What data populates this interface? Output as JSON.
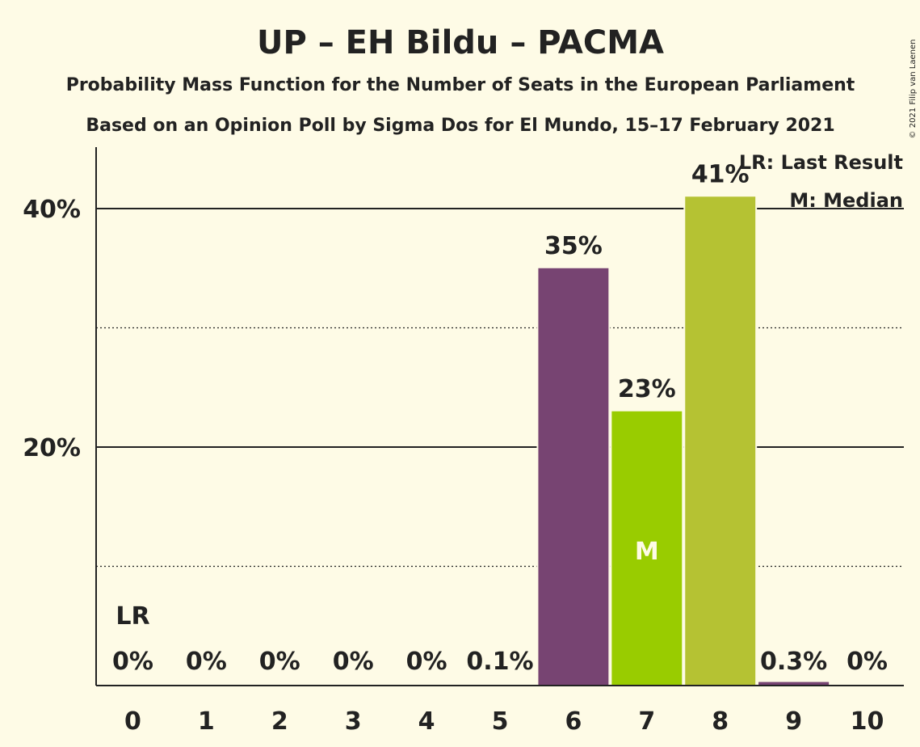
{
  "title": "UP – EH Bildu – PACMA",
  "subtitle1": "Probability Mass Function for the Number of Seats in the European Parliament",
  "subtitle2": "Based on an Opinion Poll by Sigma Dos for El Mundo, 15–17 February 2021",
  "copyright": "© 2021 Filip van Laenen",
  "legend": {
    "lr": "LR: Last Result",
    "m": "M: Median"
  },
  "chart_data": {
    "type": "bar",
    "categories": [
      "0",
      "1",
      "2",
      "3",
      "4",
      "5",
      "6",
      "7",
      "8",
      "9",
      "10"
    ],
    "values": [
      0,
      0,
      0,
      0,
      0,
      0.1,
      35,
      23,
      41,
      0.3,
      0
    ],
    "value_labels": [
      "0%",
      "0%",
      "0%",
      "0%",
      "0%",
      "0.1%",
      "35%",
      "23%",
      "41%",
      "0.3%",
      "0%"
    ],
    "colors": [
      "#FEFBE6",
      "#FEFBE6",
      "#FEFBE6",
      "#FEFBE6",
      "#FEFBE6",
      "#FEFBE6",
      "#774472",
      "#99CC00",
      "#B5C233",
      "#774472",
      "#FEFBE6"
    ],
    "last_result_index": 0,
    "last_result_label": "LR",
    "median_index": 7,
    "median_label": "M",
    "yticks": [
      {
        "value": 20,
        "label": "20%"
      },
      {
        "value": 40,
        "label": "40%"
      }
    ],
    "minor_gridlines": [
      10,
      30
    ],
    "ylim": [
      0,
      45
    ],
    "xlabel": "",
    "ylabel": ""
  }
}
